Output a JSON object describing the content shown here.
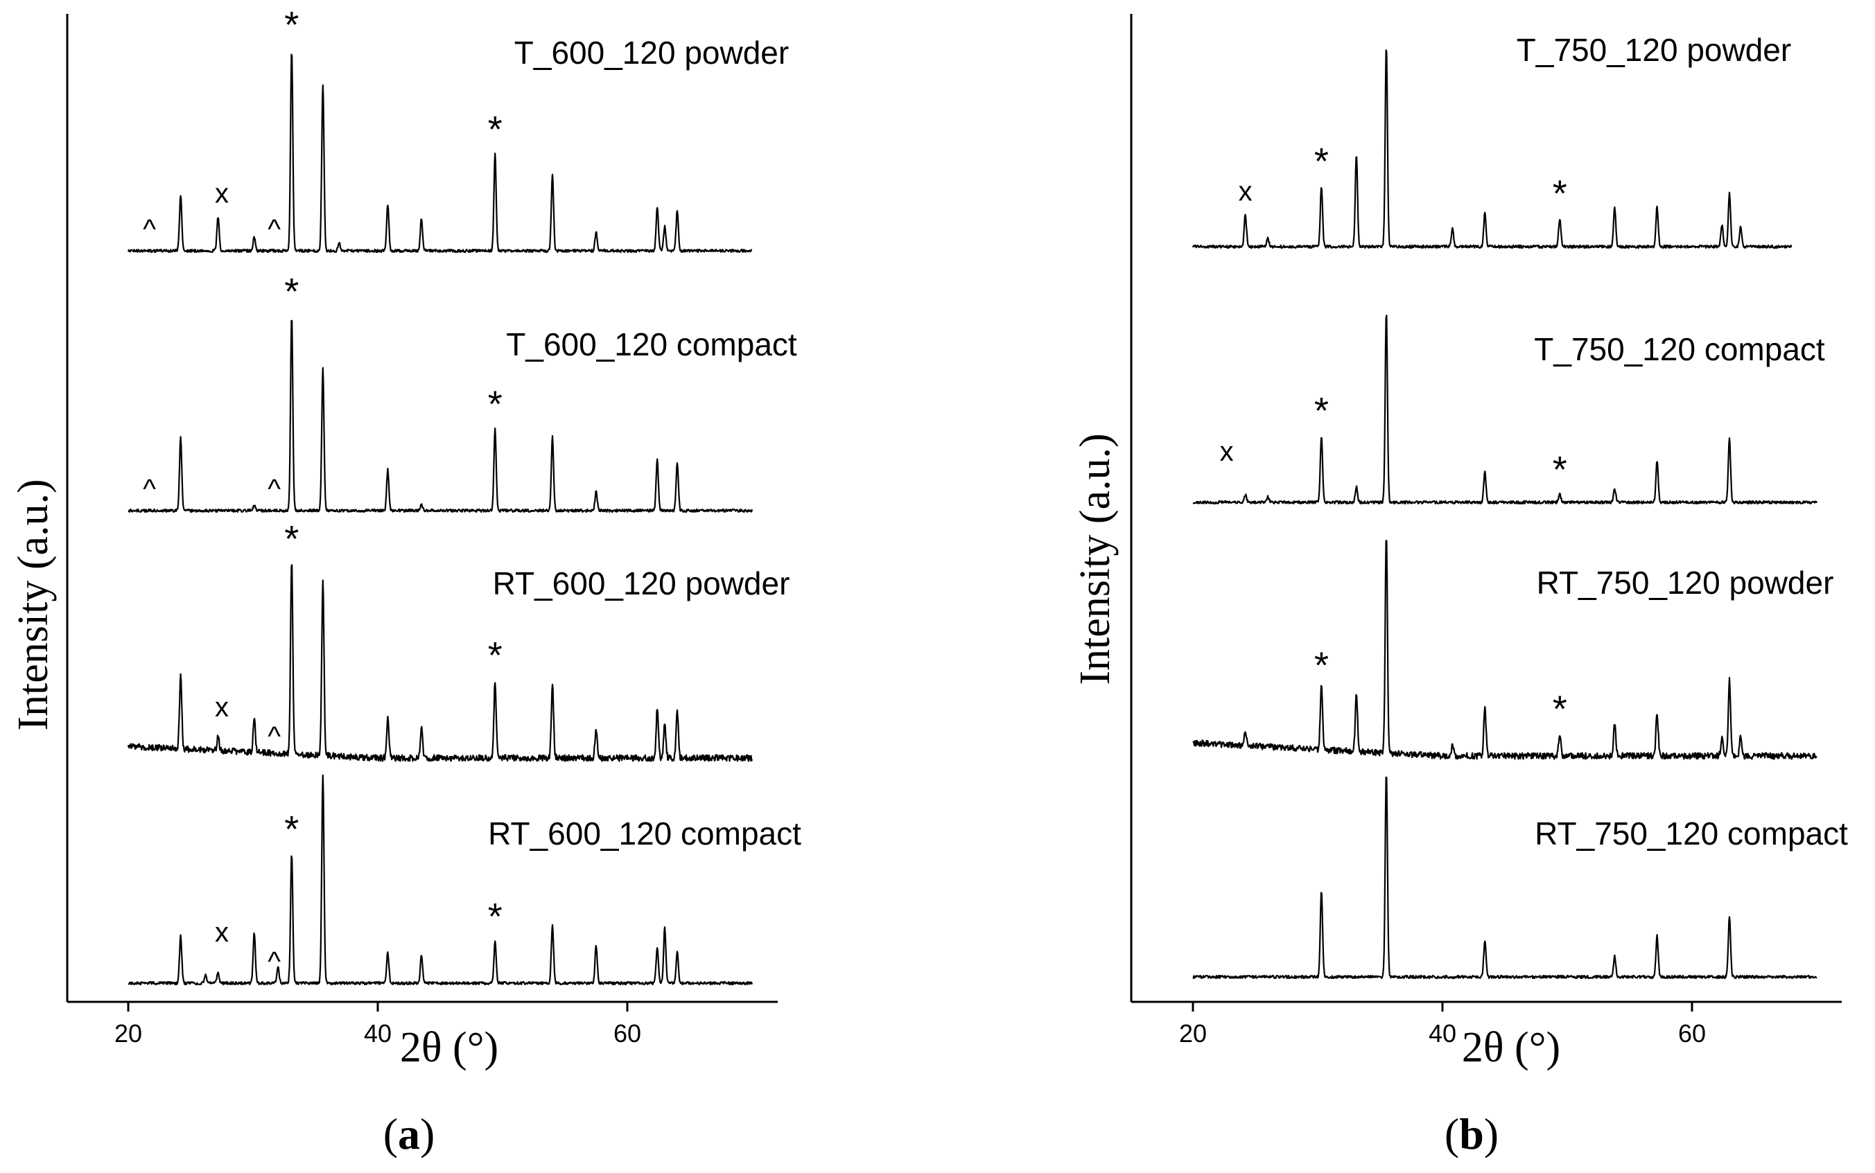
{
  "figure": {
    "type": "XRD patterns (stacked line plots)"
  },
  "chart_data": [
    {
      "id": "a",
      "type": "line",
      "panel_label_open": "(",
      "panel_label_letter": "a",
      "panel_label_close": ")",
      "xlabel": "2θ (°)",
      "ylabel": "Intensity (a.u.)",
      "xlim": [
        15,
        72
      ],
      "xticks": [
        "20",
        "40",
        "60"
      ],
      "xtick_values": [
        20,
        40,
        60
      ],
      "grid": false,
      "series": [
        {
          "name": "T_600_120 powder",
          "x_start": 20,
          "x_end": 70,
          "peaks": [
            [
              24.2,
              0.28
            ],
            [
              27.2,
              0.17
            ],
            [
              30.1,
              0.07
            ],
            [
              33.1,
              1.0
            ],
            [
              35.6,
              0.83
            ],
            [
              36.9,
              0.04
            ],
            [
              40.8,
              0.23
            ],
            [
              43.5,
              0.16
            ],
            [
              49.4,
              0.48
            ],
            [
              54.0,
              0.38
            ],
            [
              57.5,
              0.09
            ],
            [
              62.4,
              0.22
            ],
            [
              63.0,
              0.12
            ],
            [
              64.0,
              0.2
            ]
          ],
          "markers": [
            {
              "symbol": "^",
              "x": 21.7
            },
            {
              "symbol": "x",
              "x": 27.5
            },
            {
              "symbol": "^",
              "x": 31.7
            },
            {
              "symbol": "*",
              "x": 33.1
            },
            {
              "symbol": "*",
              "x": 49.4
            }
          ]
        },
        {
          "name": "T_600_120 compact",
          "x_start": 20,
          "x_end": 70,
          "peaks": [
            [
              24.2,
              0.38
            ],
            [
              30.1,
              0.03
            ],
            [
              33.1,
              1.0
            ],
            [
              35.6,
              0.73
            ],
            [
              40.8,
              0.21
            ],
            [
              43.5,
              0.03
            ],
            [
              49.4,
              0.42
            ],
            [
              54.0,
              0.38
            ],
            [
              57.5,
              0.1
            ],
            [
              62.4,
              0.26
            ],
            [
              64.0,
              0.25
            ]
          ],
          "markers": [
            {
              "symbol": "^",
              "x": 21.7
            },
            {
              "symbol": "^",
              "x": 31.7
            },
            {
              "symbol": "*",
              "x": 33.1
            },
            {
              "symbol": "*",
              "x": 49.4
            }
          ]
        },
        {
          "name": "RT_600_120 powder",
          "x_start": 20,
          "x_end": 70,
          "noisy": true,
          "peaks": [
            [
              24.2,
              0.38
            ],
            [
              27.2,
              0.07
            ],
            [
              30.1,
              0.17
            ],
            [
              33.1,
              1.0
            ],
            [
              35.6,
              0.9
            ],
            [
              40.8,
              0.2
            ],
            [
              43.5,
              0.15
            ],
            [
              49.4,
              0.4
            ],
            [
              54.0,
              0.38
            ],
            [
              57.5,
              0.15
            ],
            [
              62.4,
              0.25
            ],
            [
              63.0,
              0.18
            ],
            [
              64.0,
              0.24
            ]
          ],
          "markers": [
            {
              "symbol": "x",
              "x": 27.5
            },
            {
              "symbol": "^",
              "x": 31.7
            },
            {
              "symbol": "*",
              "x": 33.1
            },
            {
              "symbol": "*",
              "x": 49.4
            }
          ]
        },
        {
          "name": "RT_600_120 compact",
          "x_start": 20,
          "x_end": 70,
          "peaks": [
            [
              24.2,
              0.23
            ],
            [
              26.2,
              0.04
            ],
            [
              27.2,
              0.05
            ],
            [
              30.1,
              0.24
            ],
            [
              32.0,
              0.08
            ],
            [
              33.1,
              0.62
            ],
            [
              35.6,
              1.0
            ],
            [
              40.8,
              0.15
            ],
            [
              43.5,
              0.13
            ],
            [
              49.4,
              0.2
            ],
            [
              54.0,
              0.28
            ],
            [
              57.5,
              0.18
            ],
            [
              62.4,
              0.17
            ],
            [
              63.0,
              0.27
            ],
            [
              64.0,
              0.15
            ]
          ],
          "markers": [
            {
              "symbol": "x",
              "x": 27.5
            },
            {
              "symbol": "^",
              "x": 31.7
            },
            {
              "symbol": "*",
              "x": 33.1
            },
            {
              "symbol": "*",
              "x": 49.4
            }
          ]
        }
      ]
    },
    {
      "id": "b",
      "type": "line",
      "panel_label_open": "(",
      "panel_label_letter": "b",
      "panel_label_close": ")",
      "xlabel": "2θ (°)",
      "ylabel": "Intensity (a.u.)",
      "xlim": [
        15,
        72
      ],
      "xticks": [
        "20",
        "40",
        "60"
      ],
      "xtick_values": [
        20,
        40,
        60
      ],
      "grid": false,
      "series": [
        {
          "name": "T_750_120 powder",
          "x_start": 20,
          "x_end": 68,
          "peaks": [
            [
              24.2,
              0.16
            ],
            [
              26.0,
              0.04
            ],
            [
              30.3,
              0.3
            ],
            [
              33.1,
              0.46
            ],
            [
              35.5,
              1.0
            ],
            [
              40.8,
              0.09
            ],
            [
              43.4,
              0.17
            ],
            [
              49.4,
              0.14
            ],
            [
              53.8,
              0.2
            ],
            [
              57.2,
              0.2
            ],
            [
              62.4,
              0.11
            ],
            [
              63.0,
              0.27
            ],
            [
              63.9,
              0.1
            ]
          ],
          "markers": [
            {
              "symbol": "x",
              "x": 24.2
            },
            {
              "symbol": "*",
              "x": 30.3
            },
            {
              "symbol": "*",
              "x": 49.4
            }
          ]
        },
        {
          "name": "T_750_120 compact",
          "x_start": 20,
          "x_end": 70,
          "peaks": [
            [
              24.2,
              0.04
            ],
            [
              26.0,
              0.03
            ],
            [
              30.3,
              0.35
            ],
            [
              33.1,
              0.08
            ],
            [
              35.5,
              1.0
            ],
            [
              43.4,
              0.16
            ],
            [
              49.4,
              0.04
            ],
            [
              53.8,
              0.07
            ],
            [
              57.2,
              0.22
            ],
            [
              63.0,
              0.34
            ]
          ],
          "markers": [
            {
              "symbol": "x",
              "x": 22.7
            },
            {
              "symbol": "*",
              "x": 30.3
            },
            {
              "symbol": "*",
              "x": 49.4
            }
          ]
        },
        {
          "name": "RT_750_120 powder",
          "x_start": 20,
          "x_end": 70,
          "noisy": true,
          "peaks": [
            [
              24.2,
              0.06
            ],
            [
              30.3,
              0.3
            ],
            [
              33.1,
              0.27
            ],
            [
              35.5,
              1.0
            ],
            [
              40.8,
              0.05
            ],
            [
              43.4,
              0.22
            ],
            [
              49.4,
              0.1
            ],
            [
              53.8,
              0.15
            ],
            [
              57.2,
              0.2
            ],
            [
              62.4,
              0.08
            ],
            [
              63.0,
              0.35
            ],
            [
              63.9,
              0.09
            ]
          ],
          "markers": [
            {
              "symbol": "*",
              "x": 30.3
            },
            {
              "symbol": "*",
              "x": 49.4
            }
          ]
        },
        {
          "name": "RT_750_120 compact",
          "x_start": 20,
          "x_end": 70,
          "peaks": [
            [
              30.3,
              0.42
            ],
            [
              35.5,
              1.0
            ],
            [
              43.4,
              0.18
            ],
            [
              53.8,
              0.1
            ],
            [
              57.2,
              0.2
            ],
            [
              63.0,
              0.3
            ]
          ],
          "markers": []
        }
      ]
    }
  ]
}
